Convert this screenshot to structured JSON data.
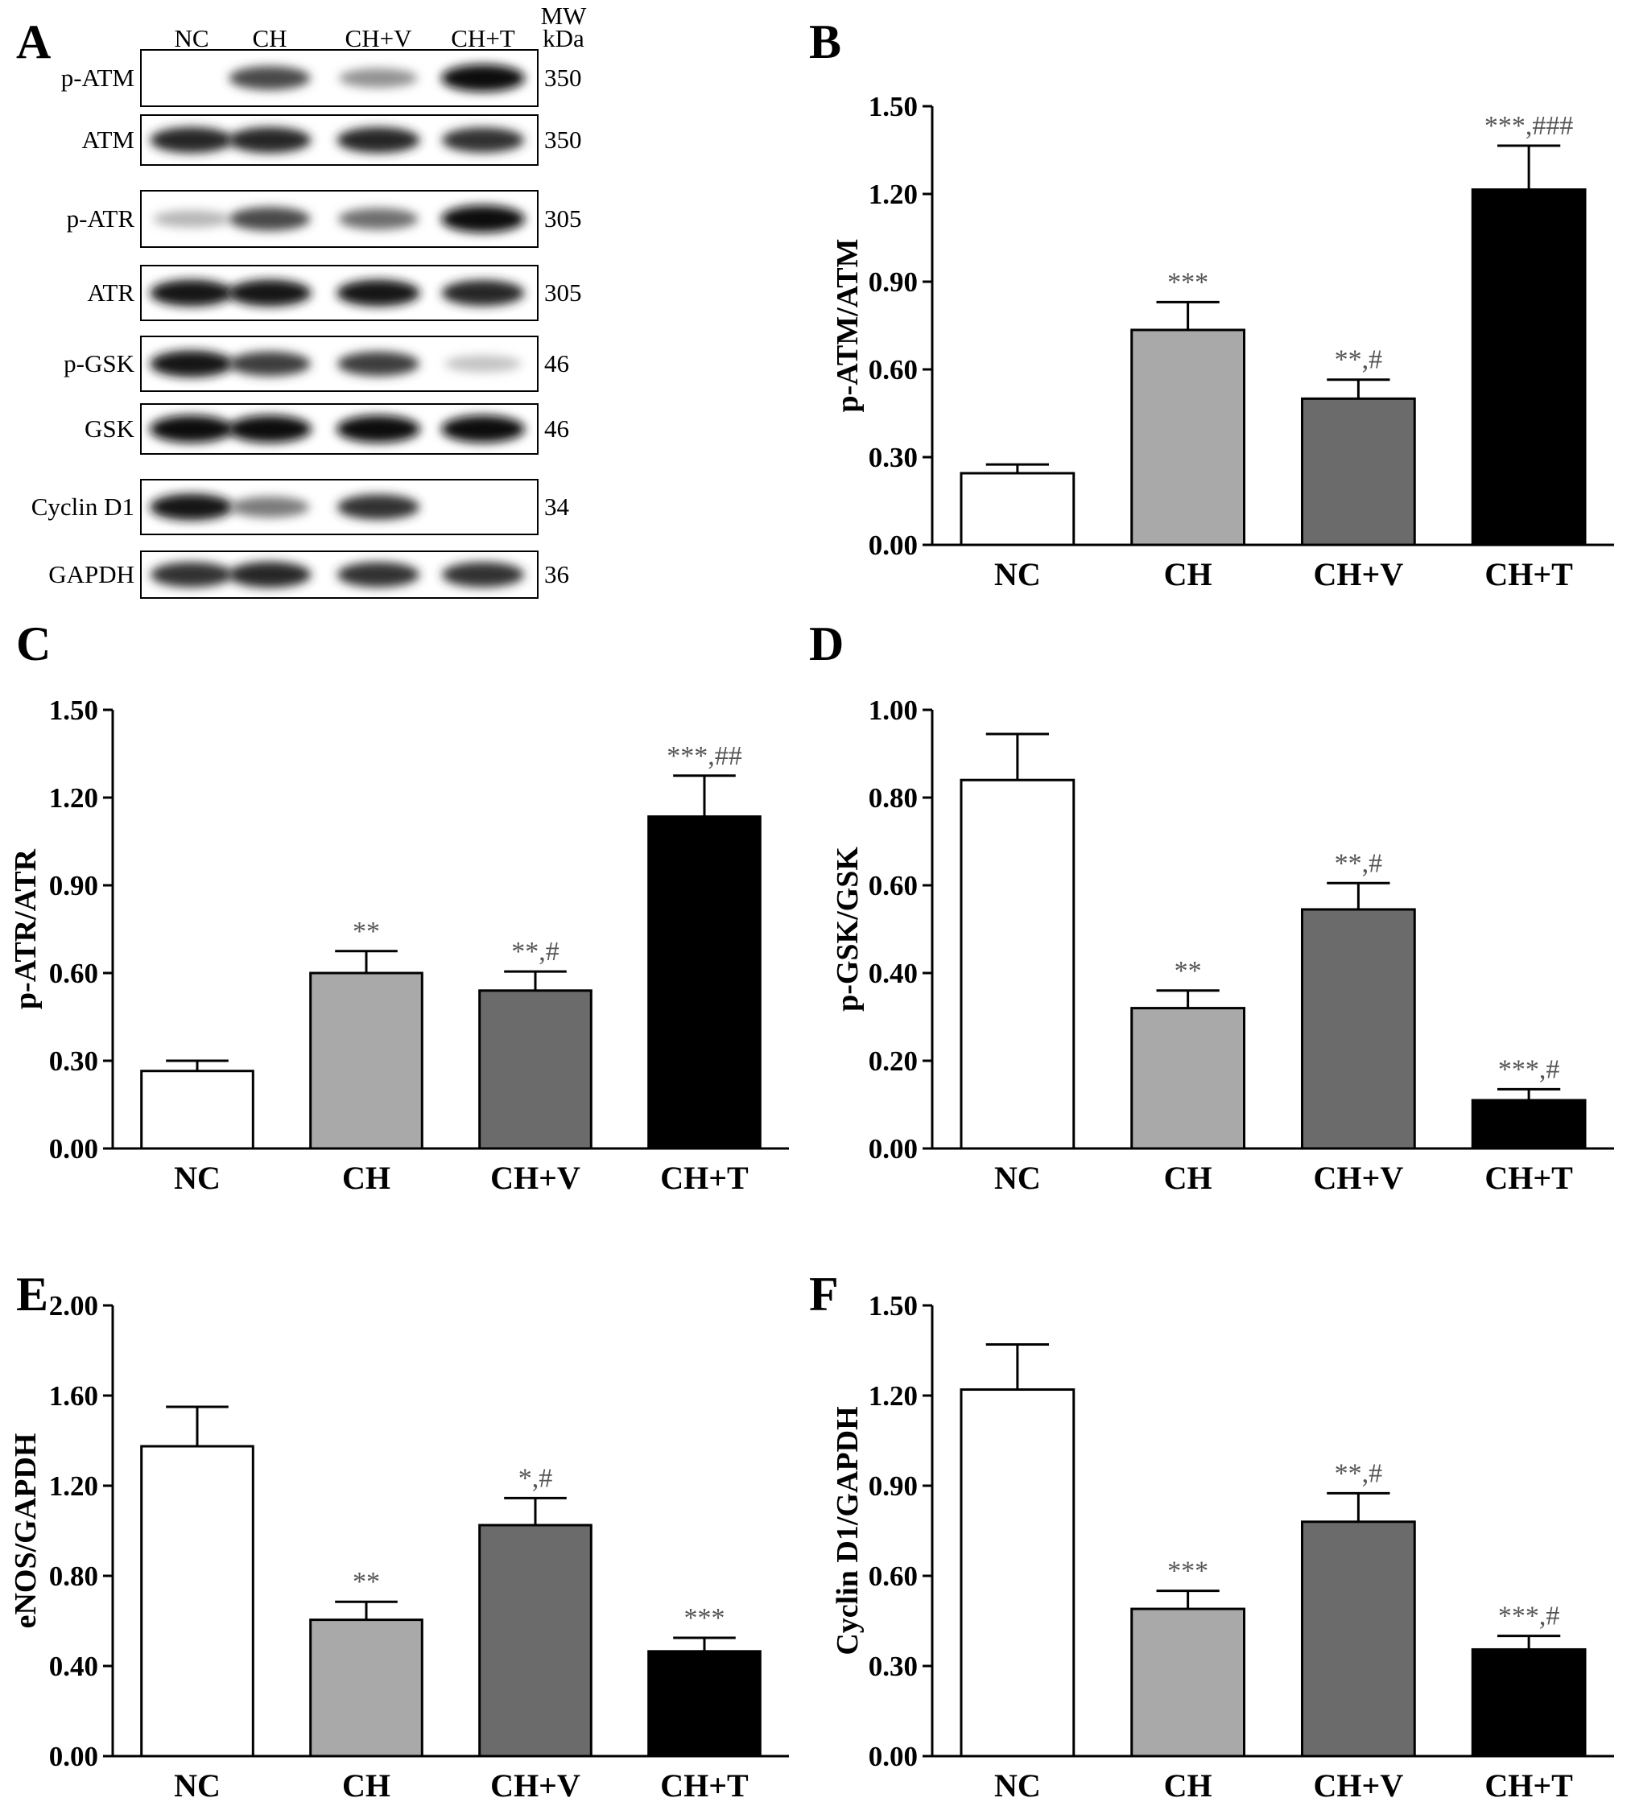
{
  "panel_a": {
    "letter": "A",
    "lanes": [
      "NC",
      "CH",
      "CH+V",
      "CH+T"
    ],
    "mw_header": [
      "MW",
      "kDa"
    ],
    "rows": [
      {
        "label": "p-ATM",
        "mw": "350",
        "bands": [
          0.0,
          0.75,
          0.45,
          1.0
        ]
      },
      {
        "label": "ATM",
        "mw": "350",
        "bands": [
          0.9,
          0.9,
          0.9,
          0.85
        ]
      },
      {
        "label": "p-ATR",
        "mw": "305",
        "bands": [
          0.3,
          0.75,
          0.6,
          1.0
        ]
      },
      {
        "label": "ATR",
        "mw": "305",
        "bands": [
          0.95,
          0.95,
          0.95,
          0.9
        ]
      },
      {
        "label": "p-GSK",
        "mw": "46",
        "bands": [
          0.95,
          0.8,
          0.8,
          0.25
        ]
      },
      {
        "label": "GSK",
        "mw": "46",
        "bands": [
          1.0,
          1.0,
          1.0,
          1.0
        ]
      },
      {
        "label": "Cyclin D1",
        "mw": "34",
        "bands": [
          0.95,
          0.55,
          0.85,
          0.0
        ]
      },
      {
        "label": "GAPDH",
        "mw": "36",
        "bands": [
          0.85,
          0.9,
          0.85,
          0.85
        ]
      }
    ]
  },
  "chart_data": [
    {
      "panel": "B",
      "type": "bar",
      "ylabel": "p-ATM/ATM",
      "categories": [
        "NC",
        "CH",
        "CH+V",
        "CH+T"
      ],
      "values": [
        0.245,
        0.735,
        0.5,
        1.215
      ],
      "errors": [
        0.03,
        0.095,
        0.065,
        0.15
      ],
      "annotations": [
        "",
        "***",
        "**,#",
        "***,###"
      ],
      "ylim": [
        0,
        1.5
      ],
      "yticks": [
        "0.00",
        "0.30",
        "0.60",
        "0.90",
        "1.20",
        "1.50"
      ],
      "colors": [
        "#ffffff",
        "#a9a9a9",
        "#6b6b6b",
        "#000000"
      ]
    },
    {
      "panel": "C",
      "type": "bar",
      "ylabel": "p-ATR/ATR",
      "categories": [
        "NC",
        "CH",
        "CH+V",
        "CH+T"
      ],
      "values": [
        0.265,
        0.6,
        0.54,
        1.135
      ],
      "errors": [
        0.035,
        0.075,
        0.065,
        0.14
      ],
      "annotations": [
        "",
        "**",
        "**,#",
        "***,##"
      ],
      "ylim": [
        0,
        1.5
      ],
      "yticks": [
        "0.00",
        "0.30",
        "0.60",
        "0.90",
        "1.20",
        "1.50"
      ],
      "colors": [
        "#ffffff",
        "#a9a9a9",
        "#6b6b6b",
        "#000000"
      ]
    },
    {
      "panel": "D",
      "type": "bar",
      "ylabel": "p-GSK/GSK",
      "categories": [
        "NC",
        "CH",
        "CH+V",
        "CH+T"
      ],
      "values": [
        0.84,
        0.32,
        0.545,
        0.11
      ],
      "errors": [
        0.105,
        0.04,
        0.06,
        0.025
      ],
      "annotations": [
        "",
        "**",
        "**,#",
        "***,#"
      ],
      "ylim": [
        0,
        1.0
      ],
      "yticks": [
        "0.00",
        "0.20",
        "0.40",
        "0.60",
        "0.80",
        "1.00"
      ],
      "colors": [
        "#ffffff",
        "#a9a9a9",
        "#6b6b6b",
        "#000000"
      ]
    },
    {
      "panel": "E",
      "type": "bar",
      "ylabel": "eNOS/GAPDH",
      "categories": [
        "NC",
        "CH",
        "CH+V",
        "CH+T"
      ],
      "values": [
        1.375,
        0.605,
        1.025,
        0.465
      ],
      "errors": [
        0.175,
        0.08,
        0.12,
        0.06
      ],
      "annotations": [
        "",
        "**",
        "*,#",
        "***"
      ],
      "ylim": [
        0,
        2.0
      ],
      "yticks": [
        "0.00",
        "0.40",
        "0.80",
        "1.20",
        "1.60",
        "2.00"
      ],
      "colors": [
        "#ffffff",
        "#a9a9a9",
        "#6b6b6b",
        "#000000"
      ]
    },
    {
      "panel": "F",
      "type": "bar",
      "ylabel": "Cyclin D1/GAPDH",
      "categories": [
        "NC",
        "CH",
        "CH+V",
        "CH+T"
      ],
      "values": [
        1.22,
        0.49,
        0.78,
        0.355
      ],
      "errors": [
        0.15,
        0.06,
        0.095,
        0.045
      ],
      "annotations": [
        "",
        "***",
        "**,#",
        "***,#"
      ],
      "ylim": [
        0,
        1.5
      ],
      "yticks": [
        "0.00",
        "0.30",
        "0.60",
        "0.90",
        "1.20",
        "1.50"
      ],
      "colors": [
        "#ffffff",
        "#a9a9a9",
        "#6b6b6b",
        "#000000"
      ]
    }
  ]
}
